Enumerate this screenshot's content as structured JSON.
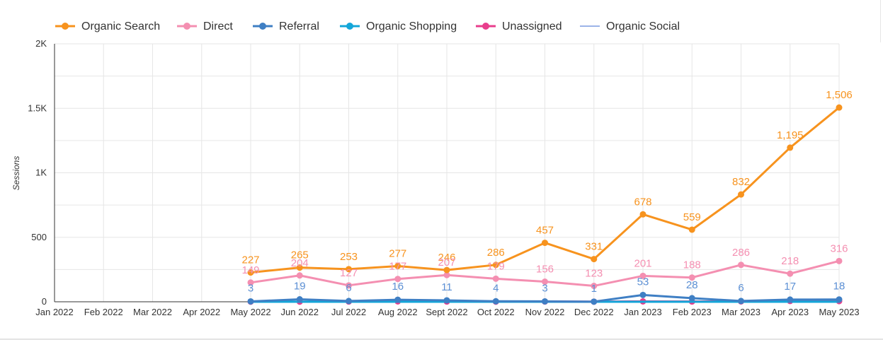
{
  "chart_data": {
    "type": "line",
    "title": "",
    "xlabel": "",
    "ylabel": "Sessions",
    "ylim": [
      0,
      2000
    ],
    "y_ticks": [
      0,
      500,
      1000,
      1500,
      2000
    ],
    "y_tick_labels": [
      "0",
      "500",
      "1K",
      "1.5K",
      "2K"
    ],
    "categories": [
      "Jan 2022",
      "Feb 2022",
      "Mar 2022",
      "Apr 2022",
      "May 2022",
      "Jun 2022",
      "Jul 2022",
      "Aug 2022",
      "Sept 2022",
      "Oct 2022",
      "Nov 2022",
      "Dec 2022",
      "Jan 2023",
      "Feb 2023",
      "Mar 2023",
      "Apr 2023",
      "May 2023"
    ],
    "grid": true,
    "legend_position": "top-left",
    "series": [
      {
        "name": "Organic Search",
        "color": "#f7931e",
        "values": [
          null,
          null,
          null,
          null,
          227,
          265,
          253,
          277,
          246,
          286,
          457,
          331,
          678,
          559,
          832,
          1195,
          1506
        ],
        "labels": [
          null,
          null,
          null,
          null,
          "227",
          "265",
          "253",
          "277",
          "246",
          "286",
          "457",
          "331",
          "678",
          "559",
          "832",
          "1,195",
          "1,506"
        ]
      },
      {
        "name": "Direct",
        "color": "#f48fb1",
        "values": [
          null,
          null,
          null,
          null,
          149,
          204,
          127,
          177,
          207,
          179,
          156,
          123,
          201,
          188,
          286,
          218,
          316
        ],
        "labels": [
          null,
          null,
          null,
          null,
          "149",
          "204",
          "127",
          "177",
          "207",
          "179",
          "156",
          "123",
          "201",
          "188",
          "286",
          "218",
          "316"
        ]
      },
      {
        "name": "Referral",
        "color": "#3f7fc4",
        "values": [
          null,
          null,
          null,
          null,
          3,
          19,
          6,
          16,
          11,
          4,
          3,
          1,
          53,
          28,
          6,
          17,
          18
        ],
        "labels": [
          null,
          null,
          null,
          null,
          "3",
          "19",
          "6",
          "16",
          "11",
          "4",
          "3",
          "1",
          "53",
          "28",
          "6",
          "17",
          "18"
        ]
      },
      {
        "name": "Organic Shopping",
        "color": "#13a6d9",
        "values": [
          null,
          null,
          null,
          null,
          0,
          0,
          0,
          0,
          0,
          0,
          0,
          0,
          0,
          0,
          0,
          0,
          0
        ],
        "labels": []
      },
      {
        "name": "Unassigned",
        "color": "#e83e8c",
        "values": [
          null,
          null,
          null,
          null,
          1,
          1,
          2,
          3,
          2,
          1,
          2,
          1,
          3,
          2,
          3,
          6,
          5
        ],
        "labels": []
      },
      {
        "name": "Organic Social",
        "color": "#7b9be0",
        "values": [
          null,
          null,
          null,
          null,
          0,
          0,
          0,
          0,
          0,
          0,
          0,
          0,
          0,
          0,
          0,
          0,
          0
        ],
        "labels": []
      }
    ]
  }
}
